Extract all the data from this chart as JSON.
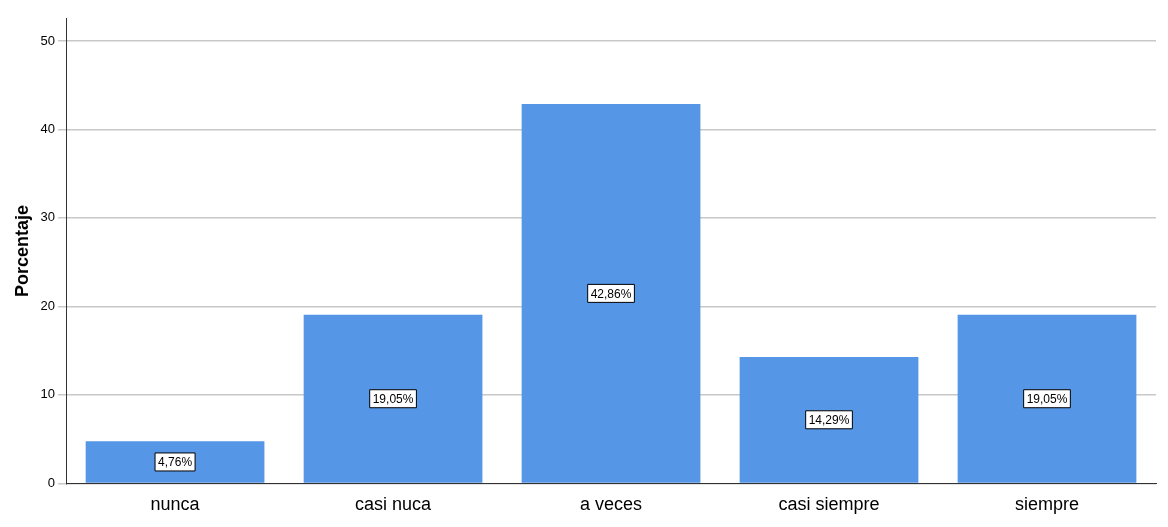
{
  "chart_data": {
    "type": "bar",
    "ylabel": "Porcentaje",
    "categories": [
      "nunca",
      "casi nuca",
      "a veces",
      "casi siempre",
      "siempre"
    ],
    "values": [
      4.76,
      19.05,
      42.86,
      14.29,
      19.05
    ],
    "value_labels": [
      "4,76%",
      "19,05%",
      "42,86%",
      "14,29%",
      "19,05%"
    ],
    "color": "#5596e6",
    "ylim": [
      0,
      52.5
    ],
    "yticks": [
      0,
      10,
      20,
      30,
      40,
      50
    ],
    "grid": "y",
    "legend": false
  }
}
